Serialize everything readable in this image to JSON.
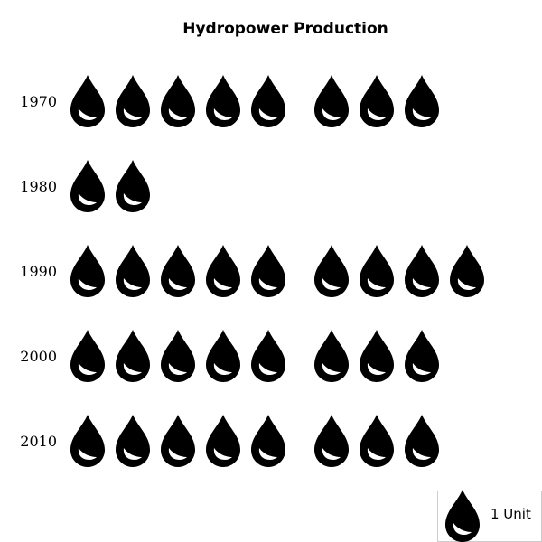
{
  "chart_data": {
    "type": "pictograph",
    "title": "Hydropower Production",
    "categories": [
      "1970",
      "1980",
      "1990",
      "2000",
      "2010"
    ],
    "values": [
      8,
      2,
      9,
      8,
      8
    ],
    "icon": "water-drop-icon",
    "icon_color": "#000000",
    "axis_color": "#cccccc",
    "legend": {
      "label": "1 Unit",
      "position": "bottom-right"
    }
  }
}
